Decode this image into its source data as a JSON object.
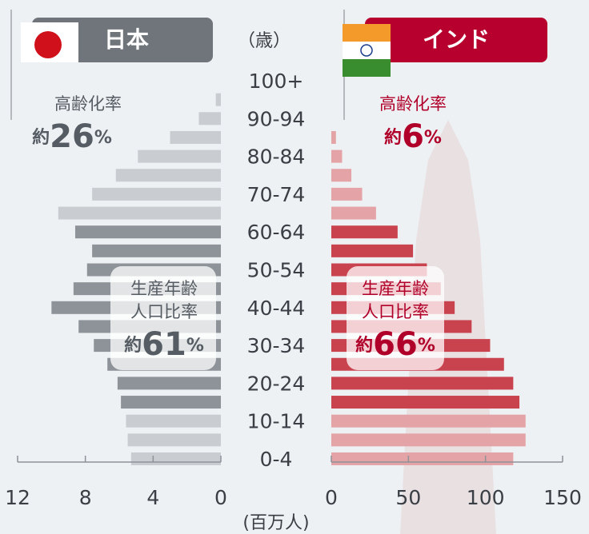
{
  "age_unit": "（歳）",
  "x_unit": "(百万人)",
  "chart_data": [
    {
      "type": "bar",
      "orientation": "horizontal",
      "direction": "left",
      "title": "日本",
      "categories": [
        "0-4",
        null,
        "10-14",
        null,
        "20-24",
        null,
        "30-34",
        null,
        "40-44",
        null,
        "50-54",
        null,
        "60-64",
        null,
        "70-74",
        null,
        "80-84",
        null,
        "90-94",
        null,
        "100+"
      ],
      "values": [
        5.3,
        5.5,
        5.6,
        5.9,
        6.1,
        6.7,
        7.5,
        8.4,
        10.0,
        8.7,
        7.9,
        7.6,
        8.6,
        9.6,
        7.6,
        6.2,
        4.9,
        3.0,
        1.3,
        0.3,
        0
      ],
      "colors": [
        "#c9cdd1",
        "#c9cdd1",
        "#c9cdd1",
        "#8d9399",
        "#8d9399",
        "#8d9399",
        "#8d9399",
        "#8d9399",
        "#8d9399",
        "#8d9399",
        "#8d9399",
        "#8d9399",
        "#8d9399",
        "#c9cdd1",
        "#c9cdd1",
        "#c9cdd1",
        "#c9cdd1",
        "#c9cdd1",
        "#c9cdd1",
        "#c9cdd1",
        "#c9cdd1"
      ],
      "xlim": [
        0,
        12
      ],
      "xticks": [
        0,
        4,
        8,
        12
      ],
      "annotations": [
        {
          "label": [
            "高齢化率"
          ],
          "prefix": "約",
          "value": 26,
          "suffix": "%"
        },
        {
          "label": [
            "生産年齢",
            "人口比率"
          ],
          "prefix": "約",
          "value": 61,
          "suffix": "%"
        }
      ]
    },
    {
      "type": "bar",
      "orientation": "horizontal",
      "direction": "right",
      "title": "インド",
      "values": [
        118,
        126,
        126,
        122,
        118,
        112,
        103,
        91,
        80,
        71,
        62,
        53,
        43,
        29,
        20,
        13,
        7,
        3,
        0,
        0,
        0
      ],
      "colors": [
        "#e4a3a6",
        "#e4a3a6",
        "#e4a3a6",
        "#c9434f",
        "#c9434f",
        "#c9434f",
        "#c9434f",
        "#c9434f",
        "#c9434f",
        "#c9434f",
        "#c9434f",
        "#c9434f",
        "#c9434f",
        "#e4a3a6",
        "#e4a3a6",
        "#e4a3a6",
        "#e4a3a6",
        "#e4a3a6",
        "#e4a3a6",
        "#e4a3a6",
        "#e4a3a6"
      ],
      "xlim": [
        0,
        150
      ],
      "xticks": [
        0,
        50,
        100,
        150
      ],
      "annotations": [
        {
          "label": [
            "高齢化率"
          ],
          "prefix": "約",
          "value": 6,
          "suffix": "%"
        },
        {
          "label": [
            "生産年齢",
            "人口比率"
          ],
          "prefix": "約",
          "value": 66,
          "suffix": "%"
        }
      ]
    }
  ]
}
